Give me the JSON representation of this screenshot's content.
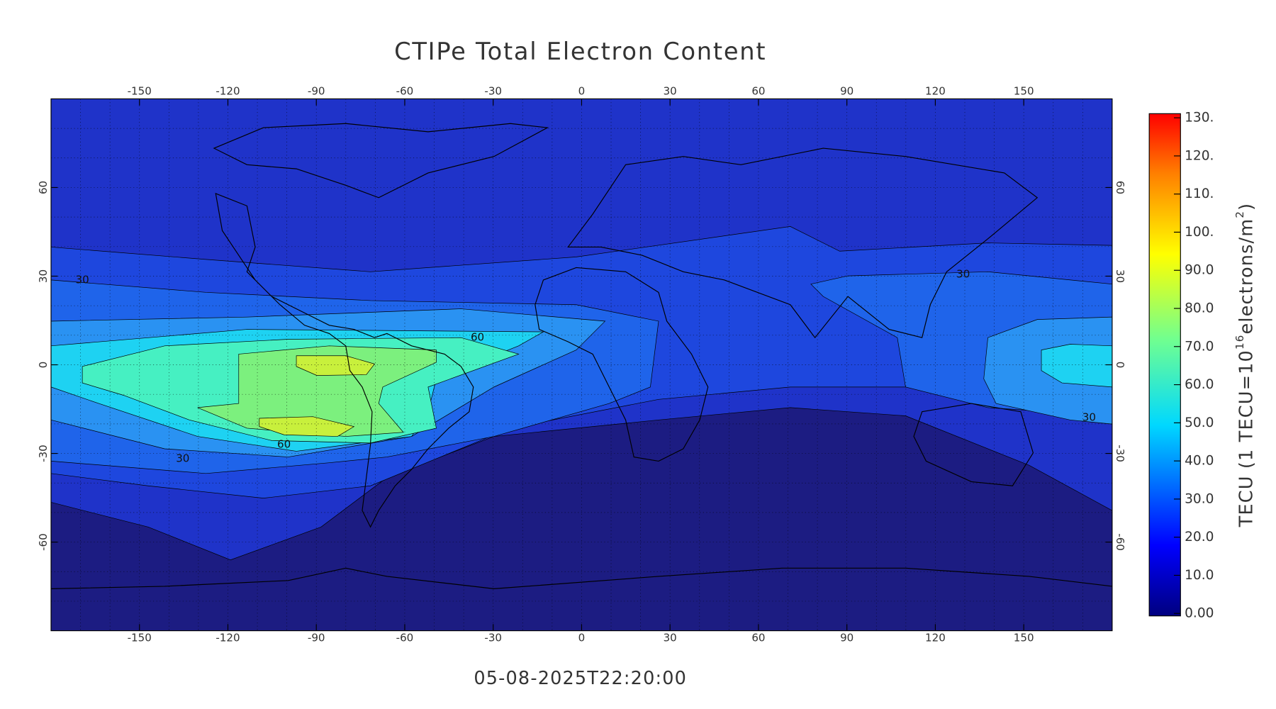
{
  "header": {
    "title": "CTIPe Total Electron Content"
  },
  "footer": {
    "timestamp": "05-08-2025T22:20:00"
  },
  "map": {
    "lon_range": [
      -180,
      180
    ],
    "lat_range": [
      -90,
      90
    ],
    "lon_ticks": [
      -150,
      -120,
      -90,
      -60,
      -30,
      0,
      30,
      60,
      90,
      120,
      150
    ],
    "lat_ticks": [
      -60,
      -30,
      0,
      30,
      60
    ],
    "contour_labels": [
      30,
      60,
      60,
      30,
      30,
      30
    ]
  },
  "colorbar": {
    "range": [
      0,
      130
    ],
    "ticks": [
      {
        "value": 0,
        "label": "0.00"
      },
      {
        "value": 10,
        "label": "10.0"
      },
      {
        "value": 20,
        "label": "20.0"
      },
      {
        "value": 30,
        "label": "30.0"
      },
      {
        "value": 40,
        "label": "40.0"
      },
      {
        "value": 50,
        "label": "50.0"
      },
      {
        "value": 60,
        "label": "60.0"
      },
      {
        "value": 70,
        "label": "70.0"
      },
      {
        "value": 80,
        "label": "80.0"
      },
      {
        "value": 90,
        "label": "90.0"
      },
      {
        "value": 100,
        "label": "100."
      },
      {
        "value": 110,
        "label": "110."
      },
      {
        "value": 120,
        "label": "120."
      },
      {
        "value": 130,
        "label": "130."
      }
    ],
    "label_parts": [
      "TECU (1 TECU=10",
      "16",
      "electrons/m",
      "2",
      ")"
    ]
  }
}
